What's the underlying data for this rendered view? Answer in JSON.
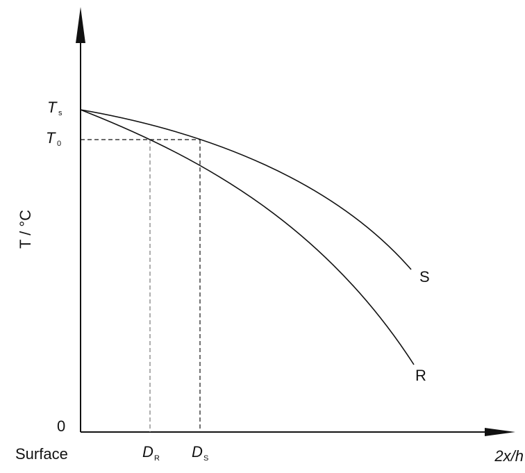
{
  "axes": {
    "y_label": "T / °C",
    "x_label": "2x/h",
    "origin_label": "0",
    "surface_label": "Surface"
  },
  "levels": {
    "ts": {
      "main": "T",
      "sub": "s"
    },
    "t0": {
      "main": "T",
      "sub": "0"
    }
  },
  "depths": {
    "dr": {
      "main": "D",
      "sub": "R"
    },
    "ds": {
      "main": "D",
      "sub": "S"
    }
  },
  "curves": {
    "s": {
      "label": "S"
    },
    "r": {
      "label": "R"
    }
  },
  "colors": {
    "ink": "#111111",
    "light_guide": "#777777"
  }
}
